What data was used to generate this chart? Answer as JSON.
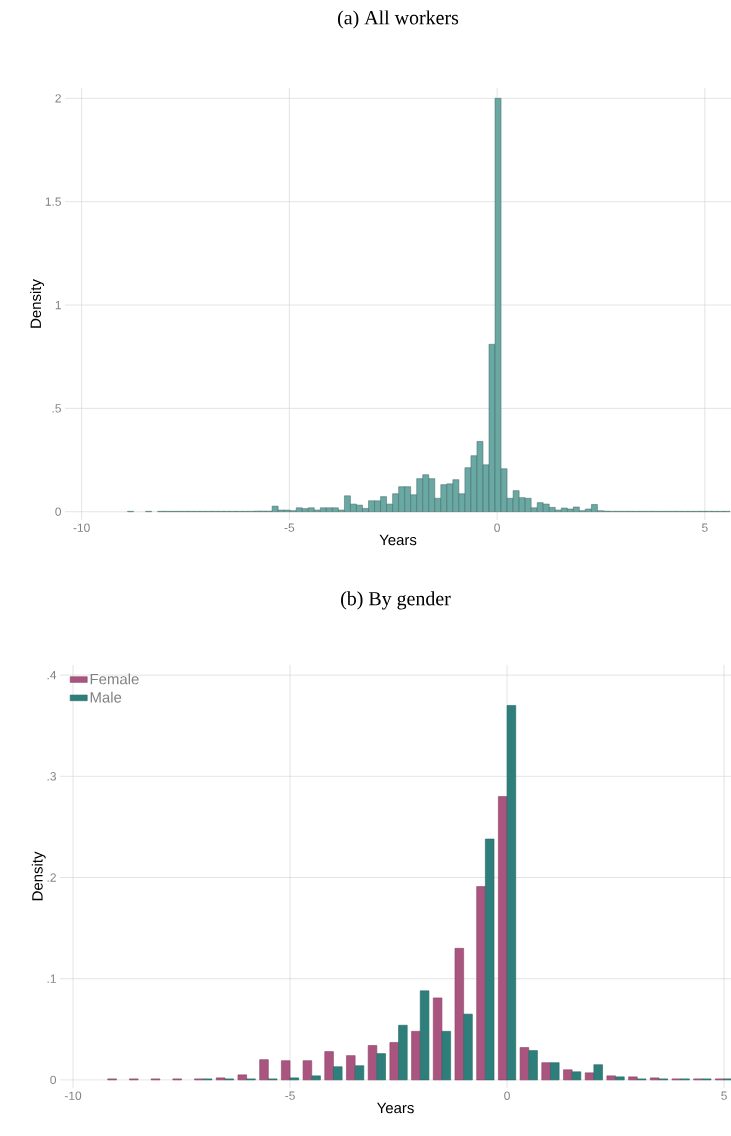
{
  "chart_data": [
    {
      "type": "histogram",
      "title": "(a) All workers",
      "xlabel": "Years",
      "ylabel": "Density",
      "color": "#6aa8a4",
      "bins": [
        -8.895,
        -8.75,
        -8.605,
        -8.46,
        -8.315,
        -8.17,
        -8.025,
        -7.88,
        -7.735,
        -7.59,
        -7.445,
        -7.3,
        -7.155,
        -7.01,
        -6.865,
        -6.72,
        -6.575,
        -6.43,
        -6.285,
        -6.14,
        -5.995,
        -5.85,
        -5.705,
        -5.56,
        -5.415,
        -5.27,
        -5.125,
        -4.98,
        -4.835,
        -4.69,
        -4.545,
        -4.4,
        -4.255,
        -4.11,
        -3.965,
        -3.82,
        -3.675,
        -3.53,
        -3.385,
        -3.24,
        -3.095,
        -2.95,
        -2.805,
        -2.66,
        -2.515,
        -2.37,
        -2.225,
        -2.08,
        -1.935,
        -1.79,
        -1.645,
        -1.5,
        -1.355,
        -1.21,
        -1.065,
        -0.92,
        -0.775,
        -0.63,
        -0.485,
        -0.34,
        -0.195,
        -0.05,
        0.095,
        0.24,
        0.385,
        0.53,
        0.675,
        0.82,
        0.965,
        1.11,
        1.255,
        1.4,
        1.545,
        1.69,
        1.835,
        1.98,
        2.125,
        2.27,
        2.415,
        2.56,
        2.705,
        2.85,
        2.995,
        3.14,
        3.285,
        3.43,
        3.575,
        3.72,
        3.865,
        4.01,
        4.155,
        4.3,
        4.445,
        4.59,
        4.735,
        4.88,
        5.025,
        5.17,
        5.315,
        5.46,
        5.605
      ],
      "values": [
        0.002,
        0,
        0,
        0.002,
        0,
        0.002,
        0.002,
        0.002,
        0.002,
        0.002,
        0.002,
        0.002,
        0.002,
        0.002,
        0.002,
        0.002,
        0.002,
        0.002,
        0.002,
        0.002,
        0.002,
        0.003,
        0.003,
        0.003,
        0.027,
        0.008,
        0.008,
        0.005,
        0.019,
        0.015,
        0.019,
        0.008,
        0.019,
        0.019,
        0.019,
        0.008,
        0.077,
        0.037,
        0.032,
        0.016,
        0.053,
        0.053,
        0.073,
        0.037,
        0.087,
        0.121,
        0.121,
        0.082,
        0.16,
        0.179,
        0.16,
        0.065,
        0.131,
        0.135,
        0.155,
        0.087,
        0.213,
        0.271,
        0.34,
        0.227,
        0.81,
        2.0,
        0.208,
        0.065,
        0.102,
        0.068,
        0.065,
        0.019,
        0.044,
        0.037,
        0.021,
        0.008,
        0.018,
        0.013,
        0.023,
        0.005,
        0.013,
        0.035,
        0.005,
        0.003,
        0.002,
        0.002,
        0.002,
        0.002,
        0.002,
        0.002,
        0.002,
        0.002,
        0.002,
        0.002,
        0.002,
        0.002,
        0.002,
        0.002,
        0.002,
        0.002,
        0.002,
        0.002,
        0.002,
        0.002
      ],
      "xlim": [
        -10.4,
        5.63
      ],
      "ylim": [
        -0.04,
        2.05
      ],
      "xticks": [
        -10,
        -5,
        0,
        5
      ],
      "yticks": [
        0,
        {
          "value": 0.5,
          "label": ".5"
        },
        1,
        1.5,
        2
      ],
      "grid": true
    },
    {
      "type": "bar",
      "title": "(b) By gender",
      "xlabel": "Years",
      "ylabel": "Density",
      "x": [
        -9,
        -8.5,
        -8,
        -7.5,
        -7,
        -6.5,
        -6,
        -5.5,
        -5,
        -4.5,
        -4,
        -3.5,
        -3,
        -2.5,
        -2,
        -1.5,
        -1,
        -0.5,
        0,
        0.5,
        1,
        1.5,
        2,
        2.5,
        3,
        3.5,
        4,
        4.5,
        5
      ],
      "series": [
        {
          "name": "Female",
          "color": "#aa5580",
          "values": [
            0.001,
            0.001,
            0.001,
            0.001,
            0.001,
            0.002,
            0.005,
            0.02,
            0.019,
            0.019,
            0.028,
            0.024,
            0.034,
            0.037,
            0.048,
            0.081,
            0.13,
            0.191,
            0.28,
            0.032,
            0.017,
            0.01,
            0.007,
            0.004,
            0.003,
            0.002,
            0.001,
            0.001,
            0.001
          ]
        },
        {
          "name": "Male",
          "color": "#2e7f7b",
          "values": [
            null,
            null,
            null,
            null,
            0.001,
            0.001,
            0.001,
            0.001,
            0.002,
            0.004,
            0.013,
            0.014,
            0.026,
            0.054,
            0.088,
            0.048,
            0.065,
            0.238,
            0.37,
            0.029,
            0.017,
            0.008,
            0.015,
            0.003,
            0.001,
            0.001,
            0.001,
            0.001,
            0.001
          ]
        }
      ],
      "xlim": [
        -10.3,
        5.16
      ],
      "ylim": [
        -0.008,
        0.41
      ],
      "xticks": [
        -10,
        -5,
        0,
        5
      ],
      "yticks": [
        0,
        {
          "value": 0.1,
          "label": ".1"
        },
        {
          "value": 0.2,
          "label": ".2"
        },
        {
          "value": 0.3,
          "label": ".3"
        },
        {
          "value": 0.4,
          "label": ".4"
        }
      ],
      "grid": true,
      "legend": "top left"
    }
  ]
}
